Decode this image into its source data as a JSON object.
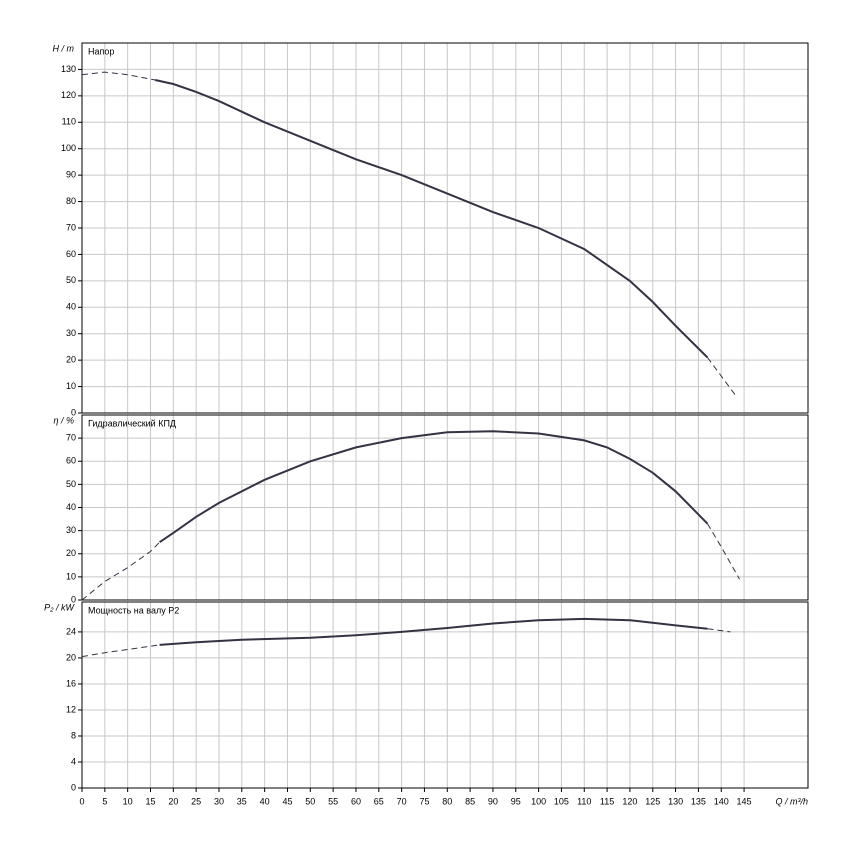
{
  "chart_data": [
    {
      "type": "line",
      "title": "Напор",
      "ylabel": "H / m",
      "xlim": [
        0,
        159
      ],
      "ylim": [
        0,
        140
      ],
      "yticks": [
        0,
        10,
        20,
        30,
        40,
        50,
        60,
        70,
        80,
        90,
        100,
        110,
        120,
        130
      ],
      "grid": true,
      "series": [
        {
          "color": "#333344",
          "dashed": true,
          "x": [
            0,
            5,
            10,
            16
          ],
          "values": [
            128,
            129,
            128,
            126
          ]
        },
        {
          "color": "#333344",
          "dashed": false,
          "x": [
            16,
            20,
            25,
            30,
            40,
            50,
            60,
            70,
            80,
            90,
            100,
            110,
            120,
            125,
            130,
            137
          ],
          "values": [
            126,
            124.5,
            121.5,
            118,
            110,
            103,
            96,
            90,
            83,
            76,
            70,
            62,
            50,
            42,
            33,
            21
          ]
        },
        {
          "color": "#333344",
          "dashed": true,
          "x": [
            137,
            140,
            143
          ],
          "values": [
            21,
            14,
            7
          ]
        }
      ]
    },
    {
      "type": "line",
      "title": "Гидравлический КПД",
      "ylabel": "η / %",
      "xlim": [
        0,
        159
      ],
      "ylim": [
        0,
        80
      ],
      "yticks": [
        0,
        10,
        20,
        30,
        40,
        50,
        60,
        70
      ],
      "grid": true,
      "series": [
        {
          "color": "#333344",
          "dashed": true,
          "x": [
            0,
            5,
            10,
            15,
            17
          ],
          "values": [
            0,
            8,
            14,
            21,
            25
          ]
        },
        {
          "color": "#333344",
          "dashed": false,
          "x": [
            17,
            20,
            25,
            30,
            40,
            50,
            60,
            70,
            80,
            90,
            100,
            110,
            115,
            120,
            125,
            130,
            135,
            137
          ],
          "values": [
            25,
            29,
            36,
            42,
            52,
            60,
            66,
            70,
            72.5,
            73,
            72,
            69,
            66,
            61,
            55,
            47,
            37,
            33
          ]
        },
        {
          "color": "#333344",
          "dashed": true,
          "x": [
            137,
            140,
            144
          ],
          "values": [
            33,
            23,
            9
          ]
        }
      ]
    },
    {
      "type": "line",
      "title": "Мощность на валу P2",
      "ylabel": "P₂ / kW",
      "xlabel": "Q / m³/h",
      "xlim": [
        0,
        159
      ],
      "ylim": [
        0,
        28.6
      ],
      "yticks": [
        0,
        4,
        8,
        12,
        16,
        20,
        24
      ],
      "xticks": [
        0,
        5,
        10,
        15,
        20,
        25,
        30,
        35,
        40,
        45,
        50,
        55,
        60,
        65,
        70,
        75,
        80,
        85,
        90,
        95,
        100,
        105,
        110,
        115,
        120,
        125,
        130,
        135,
        140,
        145
      ],
      "grid": true,
      "series": [
        {
          "color": "#333344",
          "dashed": true,
          "x": [
            0,
            5,
            10,
            15,
            17
          ],
          "values": [
            20.2,
            20.8,
            21.3,
            21.8,
            22
          ]
        },
        {
          "color": "#333344",
          "dashed": false,
          "x": [
            17,
            25,
            35,
            50,
            60,
            70,
            80,
            90,
            100,
            110,
            120,
            130,
            137
          ],
          "values": [
            22,
            22.4,
            22.8,
            23.1,
            23.5,
            24,
            24.6,
            25.3,
            25.8,
            26,
            25.8,
            25,
            24.5
          ]
        },
        {
          "color": "#333344",
          "dashed": true,
          "x": [
            137,
            142
          ],
          "values": [
            24.5,
            24
          ]
        }
      ]
    }
  ]
}
